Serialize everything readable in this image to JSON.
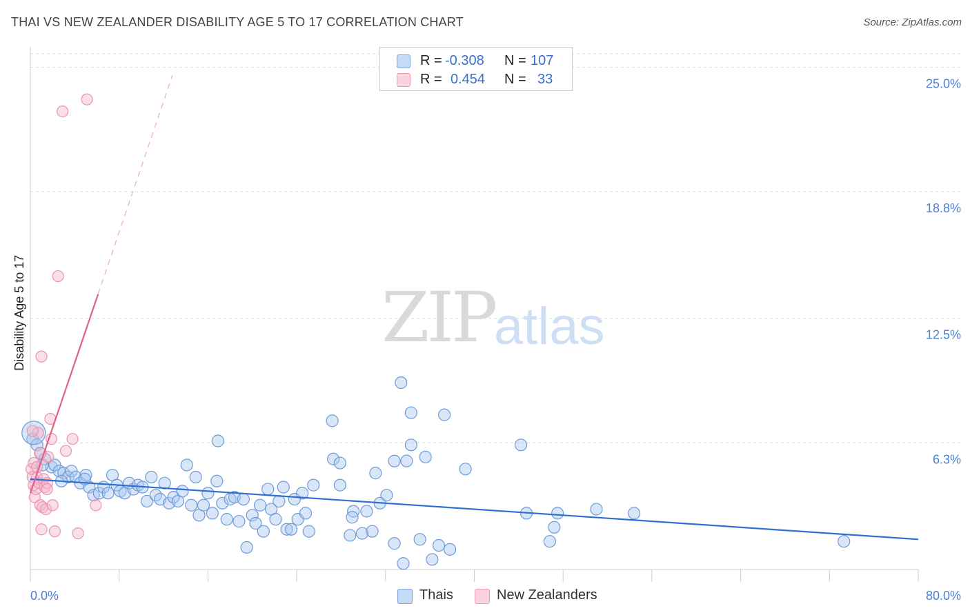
{
  "title": "THAI VS NEW ZEALANDER DISABILITY AGE 5 TO 17 CORRELATION CHART",
  "source": "Source: ZipAtlas.com",
  "watermark": {
    "zip": "ZIP",
    "atlas": "atlas"
  },
  "legend": {
    "r_label": "R =",
    "n_label": "N =",
    "rows": [
      {
        "name": "Thais",
        "r": "-0.308",
        "n": "107",
        "color": "#a8c8f0"
      },
      {
        "name": "New Zealanders",
        "r": "0.454",
        "n": "33",
        "color": "#f5b8cc"
      }
    ]
  },
  "colors": {
    "thai": "#a8c8f0",
    "thai_line": "#2f6fd0",
    "nz": "#f5b8cc",
    "nz_line": "#e0608a",
    "tick": "#4a7fd4"
  },
  "chart_data": {
    "type": "scatter",
    "title": "THAI VS NEW ZEALANDER DISABILITY AGE 5 TO 17 CORRELATION CHART",
    "xlabel": "",
    "ylabel": "Disability Age 5 to 17",
    "xlim": [
      0,
      80
    ],
    "ylim": [
      0,
      25.6
    ],
    "x_tick_labels": [
      "0.0%",
      "80.0%"
    ],
    "y_ticks": [
      6.3,
      12.5,
      18.8,
      25.0
    ],
    "y_tick_labels": [
      "6.3%",
      "12.5%",
      "18.8%",
      "25.0%"
    ],
    "series": [
      {
        "name": "Thais",
        "r": -0.308,
        "n": 107,
        "trend": {
          "x": [
            0,
            80
          ],
          "y": [
            4.5,
            1.5
          ]
        },
        "points": [
          [
            0.2,
            6.5
          ],
          [
            0.6,
            6.2
          ],
          [
            0.9,
            5.8
          ],
          [
            1.3,
            5.5
          ],
          [
            1.9,
            5.1
          ],
          [
            2.2,
            5.2
          ],
          [
            2.6,
            4.9
          ],
          [
            3.0,
            4.8
          ],
          [
            3.4,
            4.6
          ],
          [
            3.7,
            4.9
          ],
          [
            4.1,
            4.6
          ],
          [
            4.5,
            4.3
          ],
          [
            5.0,
            4.7
          ],
          [
            5.3,
            4.1
          ],
          [
            5.7,
            3.7
          ],
          [
            6.2,
            3.8
          ],
          [
            6.6,
            4.1
          ],
          [
            7.0,
            3.8
          ],
          [
            7.4,
            4.7
          ],
          [
            7.8,
            4.2
          ],
          [
            8.1,
            3.9
          ],
          [
            8.5,
            3.8
          ],
          [
            8.9,
            4.3
          ],
          [
            9.3,
            4.0
          ],
          [
            9.7,
            4.2
          ],
          [
            10.1,
            4.1
          ],
          [
            10.5,
            3.4
          ],
          [
            10.9,
            4.6
          ],
          [
            11.3,
            3.7
          ],
          [
            11.7,
            3.5
          ],
          [
            12.1,
            4.3
          ],
          [
            12.5,
            3.3
          ],
          [
            12.9,
            3.6
          ],
          [
            13.3,
            3.4
          ],
          [
            13.7,
            3.9
          ],
          [
            14.1,
            5.2
          ],
          [
            14.5,
            3.2
          ],
          [
            14.9,
            4.6
          ],
          [
            15.2,
            2.7
          ],
          [
            15.6,
            3.2
          ],
          [
            16.0,
            3.8
          ],
          [
            16.4,
            2.8
          ],
          [
            16.8,
            4.4
          ],
          [
            16.9,
            6.4
          ],
          [
            17.3,
            3.3
          ],
          [
            17.7,
            2.5
          ],
          [
            18.0,
            3.5
          ],
          [
            18.4,
            3.6
          ],
          [
            18.8,
            2.4
          ],
          [
            19.2,
            3.5
          ],
          [
            19.5,
            1.1
          ],
          [
            20.0,
            2.7
          ],
          [
            20.3,
            2.3
          ],
          [
            20.7,
            3.2
          ],
          [
            21.0,
            1.9
          ],
          [
            21.4,
            4.0
          ],
          [
            21.7,
            3.0
          ],
          [
            22.1,
            2.5
          ],
          [
            22.4,
            3.4
          ],
          [
            22.8,
            4.1
          ],
          [
            23.1,
            2.0
          ],
          [
            23.5,
            2.0
          ],
          [
            23.8,
            3.5
          ],
          [
            24.1,
            2.5
          ],
          [
            24.5,
            3.8
          ],
          [
            24.8,
            2.8
          ],
          [
            25.1,
            1.9
          ],
          [
            25.5,
            4.2
          ],
          [
            27.2,
            7.4
          ],
          [
            27.3,
            5.5
          ],
          [
            27.9,
            4.2
          ],
          [
            27.9,
            5.3
          ],
          [
            28.8,
            1.7
          ],
          [
            29.1,
            2.9
          ],
          [
            29.0,
            2.6
          ],
          [
            29.9,
            1.8
          ],
          [
            30.3,
            2.9
          ],
          [
            30.8,
            1.9
          ],
          [
            31.1,
            4.8
          ],
          [
            31.5,
            3.3
          ],
          [
            32.1,
            3.7
          ],
          [
            32.8,
            1.3
          ],
          [
            32.8,
            5.4
          ],
          [
            33.4,
            9.3
          ],
          [
            33.6,
            0.3
          ],
          [
            33.9,
            5.4
          ],
          [
            34.3,
            6.2
          ],
          [
            34.3,
            7.8
          ],
          [
            35.1,
            1.5
          ],
          [
            35.6,
            5.6
          ],
          [
            36.2,
            0.5
          ],
          [
            36.8,
            1.2
          ],
          [
            37.3,
            7.7
          ],
          [
            37.8,
            1.0
          ],
          [
            39.2,
            5.0
          ],
          [
            44.2,
            6.2
          ],
          [
            44.7,
            2.8
          ],
          [
            46.8,
            1.4
          ],
          [
            47.2,
            2.1
          ],
          [
            47.5,
            2.8
          ],
          [
            51.0,
            3.0
          ],
          [
            54.4,
            2.8
          ],
          [
            73.3,
            1.4
          ],
          [
            0.3,
            6.8
          ],
          [
            1.1,
            5.2
          ],
          [
            2.8,
            4.4
          ],
          [
            4.9,
            4.5
          ]
        ]
      },
      {
        "name": "New Zealanders",
        "r": 0.454,
        "n": 33,
        "trend": {
          "x": [
            0,
            6.1
          ],
          "y": [
            3.8,
            13.7
          ]
        },
        "trend_dashed": {
          "x": [
            6.1,
            12.8
          ],
          "y": [
            13.7,
            24.6
          ]
        },
        "points": [
          [
            0.1,
            5.0
          ],
          [
            0.2,
            4.6
          ],
          [
            0.3,
            4.2
          ],
          [
            0.3,
            5.3
          ],
          [
            0.4,
            3.6
          ],
          [
            0.5,
            4.0
          ],
          [
            0.6,
            4.6
          ],
          [
            0.7,
            6.8
          ],
          [
            0.8,
            4.3
          ],
          [
            0.9,
            3.2
          ],
          [
            0.9,
            5.8
          ],
          [
            1.0,
            10.6
          ],
          [
            1.0,
            2.0
          ],
          [
            1.1,
            3.1
          ],
          [
            1.2,
            4.5
          ],
          [
            1.3,
            4.1
          ],
          [
            1.4,
            3.0
          ],
          [
            1.5,
            4.3
          ],
          [
            1.6,
            5.6
          ],
          [
            1.8,
            7.5
          ],
          [
            1.9,
            6.5
          ],
          [
            2.0,
            3.2
          ],
          [
            2.2,
            1.9
          ],
          [
            2.5,
            14.6
          ],
          [
            2.9,
            22.8
          ],
          [
            3.2,
            5.9
          ],
          [
            3.8,
            6.5
          ],
          [
            4.3,
            1.8
          ],
          [
            5.1,
            23.4
          ],
          [
            5.9,
            3.2
          ],
          [
            0.2,
            6.9
          ],
          [
            0.6,
            5.1
          ],
          [
            1.5,
            4.0
          ]
        ]
      }
    ]
  },
  "bottom_legend": [
    {
      "label": "Thais",
      "color": "#a8c8f0"
    },
    {
      "label": "New Zealanders",
      "color": "#f5b8cc"
    }
  ]
}
